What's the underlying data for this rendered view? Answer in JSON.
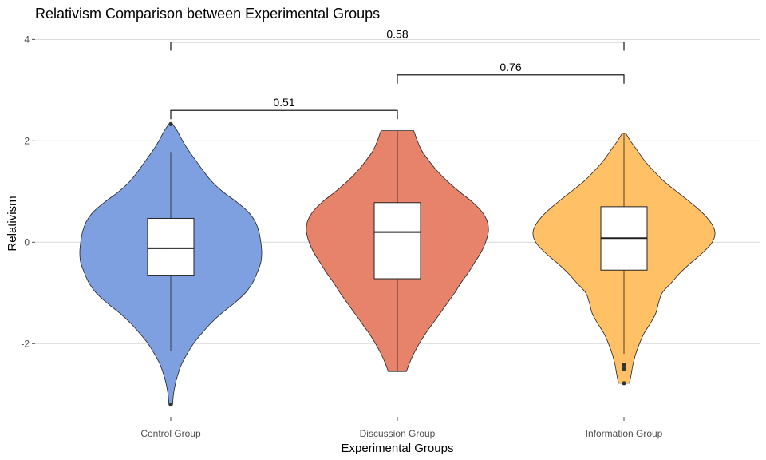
{
  "chart_data": {
    "type": "violin",
    "title": "Relativism Comparison between Experimental Groups",
    "xlabel": "Experimental Groups",
    "ylabel": "Relativism",
    "ylim": [
      -3.35,
      4.1
    ],
    "yticks": [
      -2,
      0,
      2,
      4
    ],
    "ytick_labels": [
      "-2",
      "0",
      "2",
      "4"
    ],
    "grid": "horizontal major",
    "legend": "none",
    "groups": [
      {
        "name": "Control Group",
        "color": "#7EA0E0",
        "box": {
          "q1": -0.65,
          "median": -0.12,
          "q3": 0.47,
          "whisker_low": -2.15,
          "whisker_high": 1.78
        },
        "outliers": [
          2.33,
          -3.2
        ],
        "violin_y": [
          -3.2,
          -3.0,
          -2.8,
          -2.6,
          -2.4,
          -2.2,
          -2.0,
          -1.8,
          -1.6,
          -1.4,
          -1.2,
          -1.0,
          -0.8,
          -0.6,
          -0.4,
          -0.2,
          0.0,
          0.2,
          0.4,
          0.6,
          0.8,
          1.0,
          1.2,
          1.4,
          1.6,
          1.8,
          2.0,
          2.2,
          2.33
        ],
        "violin_density": [
          0.02,
          0.03,
          0.05,
          0.08,
          0.12,
          0.18,
          0.25,
          0.34,
          0.44,
          0.56,
          0.7,
          0.82,
          0.9,
          0.95,
          0.99,
          1.0,
          0.99,
          0.97,
          0.93,
          0.85,
          0.72,
          0.57,
          0.45,
          0.36,
          0.28,
          0.2,
          0.13,
          0.07,
          0.02
        ]
      },
      {
        "name": "Discussion Group",
        "color": "#E8836B",
        "box": {
          "q1": -0.72,
          "median": 0.2,
          "q3": 0.78,
          "whisker_low": -2.55,
          "whisker_high": 2.2
        },
        "outliers": [],
        "violin_y": [
          -2.55,
          -2.4,
          -2.2,
          -2.0,
          -1.8,
          -1.6,
          -1.4,
          -1.2,
          -1.0,
          -0.8,
          -0.6,
          -0.4,
          -0.2,
          0.0,
          0.2,
          0.4,
          0.6,
          0.8,
          1.0,
          1.2,
          1.4,
          1.6,
          1.8,
          2.0,
          2.2
        ],
        "violin_density": [
          0.1,
          0.13,
          0.18,
          0.24,
          0.31,
          0.39,
          0.47,
          0.55,
          0.63,
          0.7,
          0.78,
          0.85,
          0.92,
          0.97,
          1.0,
          0.99,
          0.93,
          0.82,
          0.68,
          0.55,
          0.44,
          0.35,
          0.27,
          0.22,
          0.18
        ]
      },
      {
        "name": "Information Group",
        "color": "#FFC066",
        "box": {
          "q1": -0.55,
          "median": 0.08,
          "q3": 0.7,
          "whisker_low": -2.2,
          "whisker_high": 2.15
        },
        "outliers": [
          -2.42,
          -2.5,
          -2.78
        ],
        "violin_y": [
          -2.78,
          -2.6,
          -2.4,
          -2.2,
          -2.0,
          -1.8,
          -1.6,
          -1.4,
          -1.2,
          -1.0,
          -0.8,
          -0.6,
          -0.4,
          -0.2,
          0.0,
          0.2,
          0.4,
          0.6,
          0.8,
          1.0,
          1.2,
          1.4,
          1.6,
          1.8,
          2.0,
          2.15
        ],
        "violin_density": [
          0.06,
          0.08,
          0.1,
          0.13,
          0.17,
          0.22,
          0.29,
          0.35,
          0.38,
          0.42,
          0.52,
          0.62,
          0.74,
          0.87,
          0.97,
          1.0,
          0.95,
          0.85,
          0.72,
          0.58,
          0.44,
          0.33,
          0.23,
          0.15,
          0.07,
          0.02
        ]
      }
    ],
    "comparisons": [
      {
        "from": 0,
        "to": 1,
        "y": 2.6,
        "label": "0.51"
      },
      {
        "from": 1,
        "to": 2,
        "y": 3.3,
        "label": "0.76"
      },
      {
        "from": 0,
        "to": 2,
        "y": 3.95,
        "label": "0.58"
      }
    ]
  }
}
